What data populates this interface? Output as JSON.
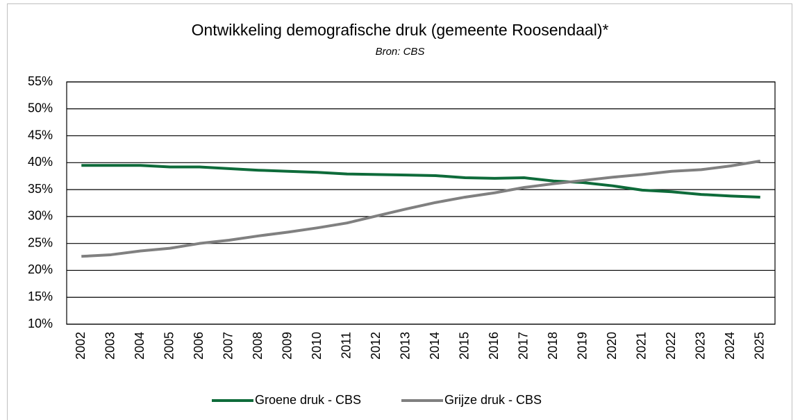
{
  "chart_data": {
    "type": "line",
    "title": "Ontwikkeling demografische druk (gemeente Roosendaal)*",
    "subtitle": "Bron: CBS",
    "categories": [
      "2002",
      "2003",
      "2004",
      "2005",
      "2006",
      "2007",
      "2008",
      "2009",
      "2010",
      "2011",
      "2012",
      "2013",
      "2014",
      "2015",
      "2016",
      "2017",
      "2018",
      "2019",
      "2020",
      "2021",
      "2022",
      "2023",
      "2024",
      "2025"
    ],
    "series": [
      {
        "name": "Groene druk - CBS",
        "color": "#0e6b3a",
        "values": [
          39.5,
          39.5,
          39.5,
          39.2,
          39.2,
          38.9,
          38.6,
          38.4,
          38.2,
          37.9,
          37.8,
          37.7,
          37.6,
          37.2,
          37.1,
          37.2,
          36.6,
          36.3,
          35.7,
          34.9,
          34.6,
          34.1,
          33.8,
          33.6
        ]
      },
      {
        "name": "Grijze druk - CBS",
        "color": "#808080",
        "values": [
          22.6,
          22.9,
          23.6,
          24.1,
          25.0,
          25.6,
          26.4,
          27.1,
          27.9,
          28.8,
          30.1,
          31.4,
          32.6,
          33.6,
          34.4,
          35.4,
          36.1,
          36.7,
          37.3,
          37.8,
          38.4,
          38.7,
          39.4,
          40.3
        ]
      }
    ],
    "ylim": [
      10,
      55
    ],
    "yticks": [
      {
        "value": 10,
        "label": "10%"
      },
      {
        "value": 15,
        "label": "15%"
      },
      {
        "value": 20,
        "label": "20%"
      },
      {
        "value": 25,
        "label": "25%"
      },
      {
        "value": 30,
        "label": "30%"
      },
      {
        "value": 35,
        "label": "35%"
      },
      {
        "value": 40,
        "label": "40%"
      },
      {
        "value": 45,
        "label": "45%"
      },
      {
        "value": 50,
        "label": "50%"
      },
      {
        "value": 55,
        "label": "55%"
      }
    ],
    "grid": true,
    "legend": "bottom"
  }
}
